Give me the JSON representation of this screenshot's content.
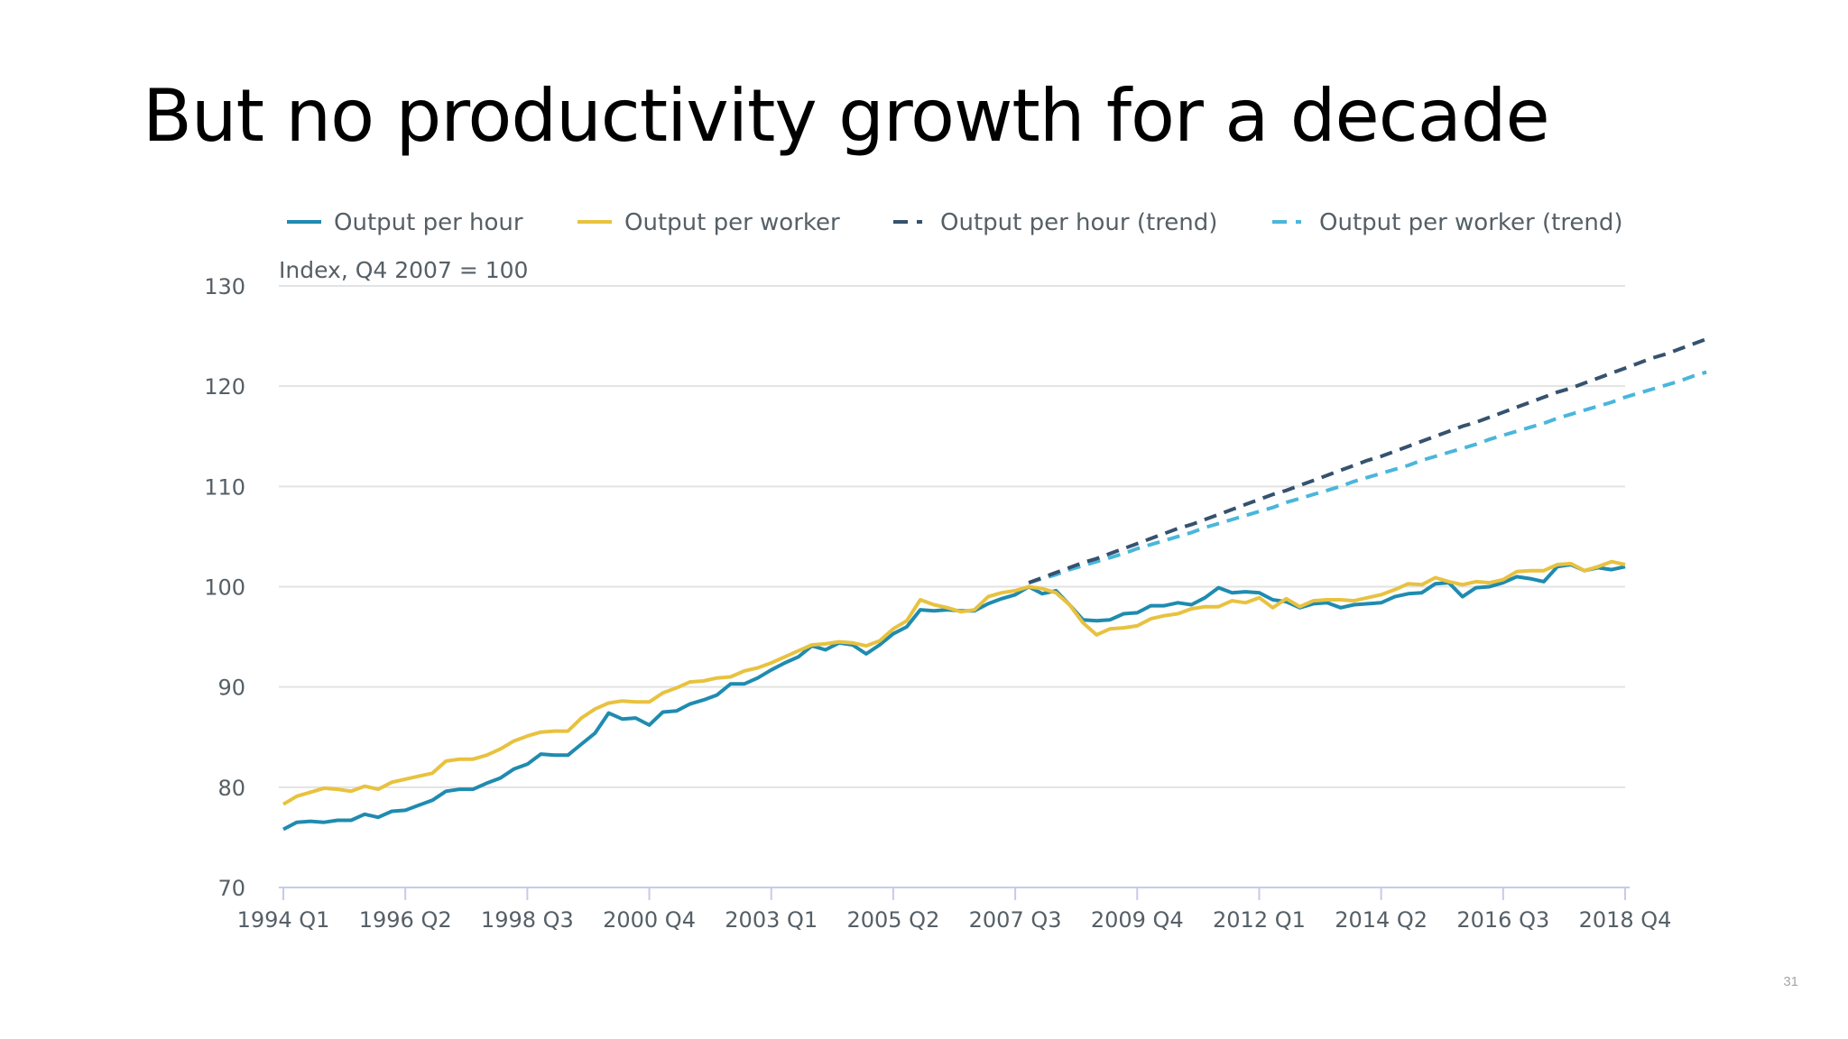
{
  "slide": {
    "title": "But no productivity growth for a decade",
    "page_number": "31"
  },
  "chart_data": {
    "type": "line",
    "title": "",
    "annotation": "Index, Q4 2007 = 100",
    "xlabel": "",
    "ylabel": "",
    "ylim": [
      70,
      130
    ],
    "yticks": [
      70,
      80,
      90,
      100,
      110,
      120,
      130
    ],
    "x_tick_labels": [
      "1994 Q1",
      "1996 Q2",
      "1998 Q3",
      "2000 Q4",
      "2003 Q1",
      "2005 Q2",
      "2007 Q3",
      "2009 Q4",
      "2012 Q1",
      "2014 Q2",
      "2016 Q3",
      "2018 Q4"
    ],
    "x_first_quarter": "1994 Q1",
    "grid": true,
    "legend_position": "top",
    "colors": {
      "output_per_hour": "#1f8bb0",
      "output_per_worker": "#e8c23f",
      "hour_trend": "#35526e",
      "worker_trend": "#4ab6db",
      "grid": "#e3e3e3",
      "axis": "#c6cbe8"
    },
    "series": [
      {
        "name": "Output per hour",
        "style": "solid",
        "values": [
          75.8,
          76.5,
          76.6,
          76.5,
          76.7,
          76.7,
          77.3,
          77.0,
          77.6,
          77.7,
          78.2,
          78.7,
          79.6,
          79.8,
          79.8,
          80.4,
          80.9,
          81.8,
          82.3,
          83.3,
          83.2,
          83.2,
          84.3,
          85.4,
          87.4,
          86.8,
          86.9,
          86.2,
          87.5,
          87.6,
          88.3,
          88.7,
          89.2,
          90.3,
          90.3,
          90.9,
          91.7,
          92.4,
          93.0,
          94.1,
          93.7,
          94.4,
          94.2,
          93.3,
          94.2,
          95.3,
          96.0,
          97.7,
          97.6,
          97.7,
          97.6,
          97.6,
          98.3,
          98.8,
          99.2,
          100.0,
          99.3,
          99.6,
          98.2,
          96.7,
          96.6,
          96.7,
          97.3,
          97.4,
          98.1,
          98.1,
          98.4,
          98.2,
          98.9,
          99.9,
          99.4,
          99.5,
          99.4,
          98.7,
          98.5,
          97.9,
          98.3,
          98.4,
          97.9,
          98.2,
          98.3,
          98.4,
          99.0,
          99.3,
          99.4,
          100.3,
          100.4,
          99.0,
          99.9,
          100.0,
          100.4,
          101.0,
          100.8,
          100.5,
          102.0,
          102.2,
          101.6,
          101.9,
          101.7,
          102.0
        ]
      },
      {
        "name": "Output per worker",
        "style": "solid",
        "values": [
          78.3,
          79.1,
          79.5,
          79.9,
          79.8,
          79.6,
          80.1,
          79.8,
          80.5,
          80.8,
          81.1,
          81.4,
          82.6,
          82.8,
          82.8,
          83.2,
          83.8,
          84.6,
          85.1,
          85.5,
          85.6,
          85.6,
          86.9,
          87.8,
          88.4,
          88.6,
          88.5,
          88.5,
          89.4,
          89.9,
          90.5,
          90.6,
          90.9,
          91.0,
          91.6,
          91.9,
          92.4,
          93.0,
          93.6,
          94.2,
          94.3,
          94.5,
          94.4,
          94.1,
          94.6,
          95.8,
          96.6,
          98.7,
          98.2,
          97.9,
          97.5,
          97.7,
          99.0,
          99.4,
          99.6,
          100.0,
          99.8,
          99.4,
          98.2,
          96.4,
          95.2,
          95.8,
          95.9,
          96.1,
          96.8,
          97.1,
          97.3,
          97.8,
          98.0,
          98.0,
          98.6,
          98.4,
          98.9,
          97.9,
          98.8,
          98.0,
          98.6,
          98.7,
          98.7,
          98.6,
          98.9,
          99.2,
          99.7,
          100.3,
          100.2,
          100.9,
          100.5,
          100.2,
          100.5,
          100.4,
          100.7,
          101.5,
          101.6,
          101.6,
          102.2,
          102.3,
          101.6,
          102.0,
          102.5,
          102.2
        ]
      },
      {
        "name": "Output per hour (trend)",
        "style": "dashed",
        "x_start": "2007 Q4",
        "values": [
          100.4,
          100.9,
          101.4,
          101.9,
          102.4,
          102.8,
          103.3,
          103.8,
          104.3,
          104.8,
          105.3,
          105.8,
          106.2,
          106.7,
          107.2,
          107.7,
          108.2,
          108.7,
          109.2,
          109.6,
          110.1,
          110.6,
          111.1,
          111.6,
          112.1,
          112.6,
          113.0,
          113.5,
          114.0,
          114.5,
          115.0,
          115.5,
          116.0,
          116.4,
          116.9,
          117.4,
          117.9,
          118.4,
          118.9,
          119.4,
          119.8,
          120.3,
          120.8,
          121.3,
          121.8,
          122.3,
          122.8,
          123.2,
          123.7,
          124.2,
          124.7
        ]
      },
      {
        "name": "Output per worker (trend)",
        "style": "dashed",
        "x_start": "2007 Q4",
        "values": [
          100.4,
          100.8,
          101.2,
          101.7,
          102.1,
          102.5,
          102.9,
          103.3,
          103.8,
          104.2,
          104.6,
          105.0,
          105.4,
          105.9,
          106.3,
          106.7,
          107.1,
          107.5,
          107.9,
          108.4,
          108.8,
          109.2,
          109.6,
          110.0,
          110.5,
          110.9,
          111.3,
          111.7,
          112.1,
          112.6,
          113.0,
          113.4,
          113.8,
          114.2,
          114.7,
          115.1,
          115.5,
          115.9,
          116.3,
          116.8,
          117.2,
          117.6,
          118.0,
          118.4,
          118.9,
          119.3,
          119.7,
          120.1,
          120.5,
          121.0,
          121.4
        ]
      }
    ]
  }
}
